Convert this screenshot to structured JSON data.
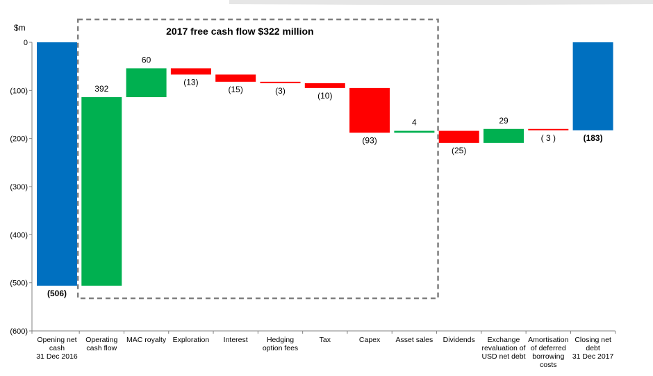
{
  "chart_data": {
    "type": "bar",
    "subtype": "waterfall",
    "unit_label": "$m",
    "annotation": "2017 free cash flow $322 million",
    "ylim": [
      -600,
      0
    ],
    "yticks": [
      0,
      -100,
      -200,
      -300,
      -400,
      -500,
      -600
    ],
    "ytick_labels": [
      "0",
      "(100)",
      "(200)",
      "(300)",
      "(400)",
      "(500)",
      "(600)"
    ],
    "grid": false,
    "colors": {
      "total": "#0070C0",
      "increase": "#00B050",
      "decrease": "#FF0000",
      "axis": "#808080",
      "box": "#7F7F7F",
      "title_band": "#D9D9D9"
    },
    "bars": [
      {
        "category": "Opening net cash 31 Dec 2016",
        "category_lines": [
          "Opening net",
          "cash",
          "31 Dec 2016"
        ],
        "kind": "total",
        "start": 0,
        "end": -506,
        "label": "(506)",
        "label_bold": true
      },
      {
        "category": "Operating cash flow",
        "category_lines": [
          "Operating",
          "cash flow"
        ],
        "kind": "increase",
        "start": -506,
        "end": -114,
        "label": "392",
        "label_bold": false
      },
      {
        "category": "MAC royalty",
        "category_lines": [
          "MAC royalty"
        ],
        "kind": "increase",
        "start": -114,
        "end": -54,
        "label": "60",
        "label_bold": false
      },
      {
        "category": "Exploration",
        "category_lines": [
          "Exploration"
        ],
        "kind": "decrease",
        "start": -54,
        "end": -67,
        "label": "(13)",
        "label_bold": false
      },
      {
        "category": "Interest",
        "category_lines": [
          "Interest"
        ],
        "kind": "decrease",
        "start": -67,
        "end": -82,
        "label": "(15)",
        "label_bold": false
      },
      {
        "category": "Hedging option fees",
        "category_lines": [
          "Hedging",
          "option fees"
        ],
        "kind": "decrease",
        "start": -82,
        "end": -85,
        "label": "(3)",
        "label_bold": false
      },
      {
        "category": "Tax",
        "category_lines": [
          "Tax"
        ],
        "kind": "decrease",
        "start": -85,
        "end": -95,
        "label": "(10)",
        "label_bold": false
      },
      {
        "category": "Capex",
        "category_lines": [
          "Capex"
        ],
        "kind": "decrease",
        "start": -95,
        "end": -188,
        "label": "(93)",
        "label_bold": false
      },
      {
        "category": "Asset sales",
        "category_lines": [
          "Asset sales"
        ],
        "kind": "increase",
        "start": -188,
        "end": -184,
        "label": "4",
        "label_bold": false
      },
      {
        "category": "Dividends",
        "category_lines": [
          "Dividends"
        ],
        "kind": "decrease",
        "start": -184,
        "end": -209,
        "label": "(25)",
        "label_bold": false
      },
      {
        "category": "Exchange revaluation of USD net debt",
        "category_lines": [
          "Exchange",
          "revaluation of",
          "USD net debt"
        ],
        "kind": "increase",
        "start": -209,
        "end": -180,
        "label": "29",
        "label_bold": false
      },
      {
        "category": "Amortisation of deferred borrowing costs",
        "category_lines": [
          "Amortisation",
          "of deferred",
          "borrowing",
          "costs"
        ],
        "kind": "decrease",
        "start": -180,
        "end": -183,
        "label": "( 3 )",
        "label_bold": false
      },
      {
        "category": "Closing net debt 31 Dec 2017",
        "category_lines": [
          "Closing net",
          "debt",
          "31 Dec 2017"
        ],
        "kind": "total",
        "start": 0,
        "end": -183,
        "label": "(183)",
        "label_bold": true
      }
    ]
  }
}
